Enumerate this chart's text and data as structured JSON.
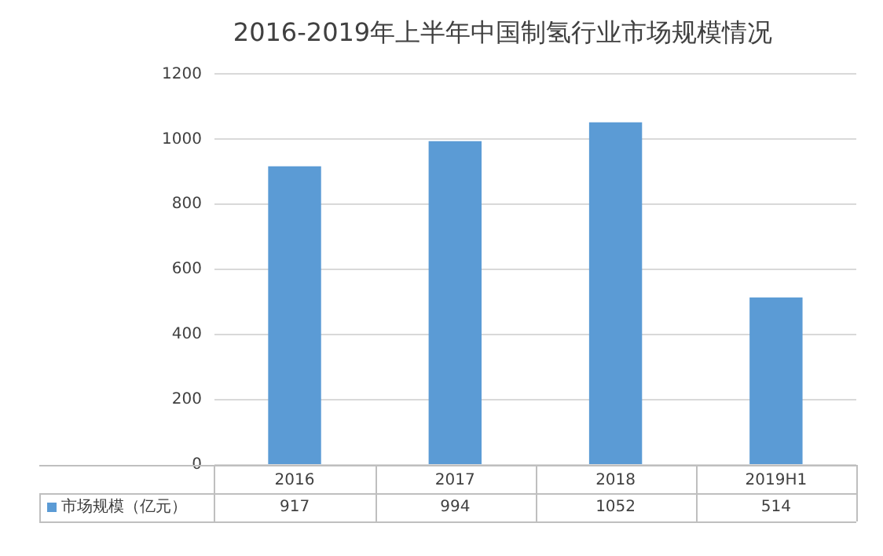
{
  "chart_data": {
    "type": "bar",
    "title": "2016-2019年上半年中国制氢行业市场规模情况",
    "categories": [
      "2016",
      "2017",
      "2018",
      "2019H1"
    ],
    "series": [
      {
        "name": "市场规模（亿元）",
        "color": "#5b9bd5",
        "values": [
          917,
          994,
          1052,
          514
        ]
      }
    ],
    "ylim": [
      0,
      1200
    ],
    "yticks": [
      0,
      200,
      400,
      600,
      800,
      1000,
      1200
    ],
    "grid": "y",
    "legend": "bottom",
    "data_labels": true
  }
}
